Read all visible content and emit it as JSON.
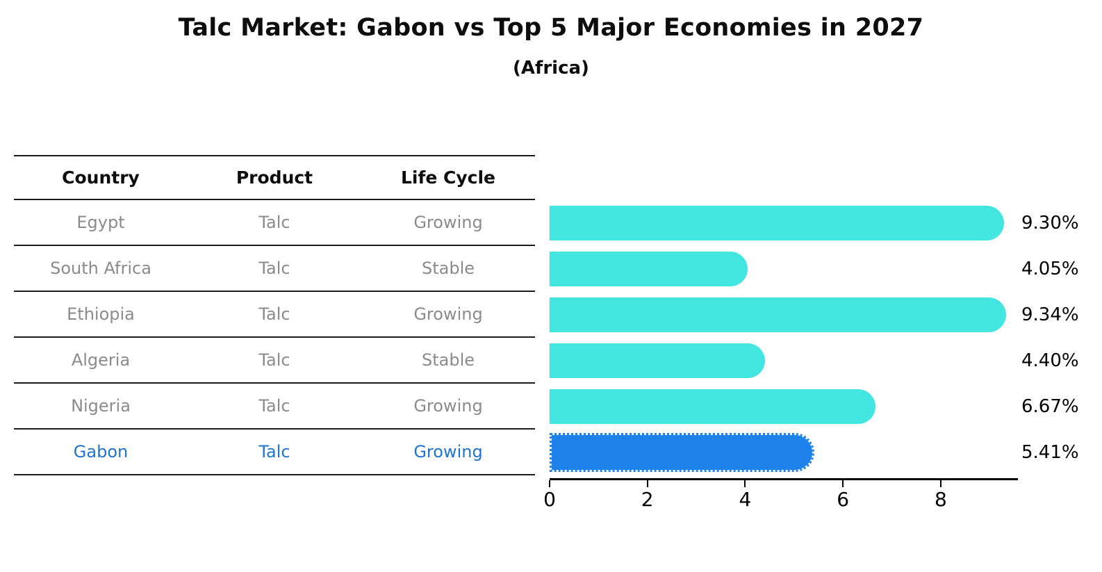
{
  "title": "Talc Market: Gabon vs Top 5 Major Economies in 2027",
  "subtitle": "(Africa)",
  "colors": {
    "bar_default": "#42e5df",
    "bar_highlight": "#1e82ec",
    "highlight_text": "#1e74d1",
    "row_text": "#8b8b8b",
    "axis": "#000000"
  },
  "table": {
    "headers": [
      "Country",
      "Product",
      "Life Cycle"
    ],
    "rows": [
      {
        "country": "Egypt",
        "product": "Talc",
        "life_cycle": "Growing",
        "highlighted": false
      },
      {
        "country": "South Africa",
        "product": "Talc",
        "life_cycle": "Stable",
        "highlighted": false
      },
      {
        "country": "Ethiopia",
        "product": "Talc",
        "life_cycle": "Growing",
        "highlighted": false
      },
      {
        "country": "Algeria",
        "product": "Talc",
        "life_cycle": "Stable",
        "highlighted": false
      },
      {
        "country": "Nigeria",
        "product": "Talc",
        "life_cycle": "Growing",
        "highlighted": false
      },
      {
        "country": "Gabon",
        "product": "Talc",
        "life_cycle": "Growing",
        "highlighted": true
      }
    ]
  },
  "chart_data": {
    "type": "bar",
    "orientation": "horizontal",
    "title": "Talc Market: Gabon vs Top 5 Major Economies in 2027",
    "subtitle": "(Africa)",
    "categories": [
      "Egypt",
      "South Africa",
      "Ethiopia",
      "Algeria",
      "Nigeria",
      "Gabon"
    ],
    "values": [
      9.3,
      4.05,
      9.34,
      4.4,
      6.67,
      5.41
    ],
    "value_labels": [
      "9.30%",
      "4.05%",
      "9.34%",
      "4.40%",
      "6.67%",
      "5.41%"
    ],
    "unit": "percent",
    "x_ticks": [
      0,
      2,
      4,
      6,
      8
    ],
    "xlim": [
      0,
      9.55
    ],
    "grid": false,
    "legend": false,
    "highlight_index": 5,
    "highlight_category": "Gabon"
  }
}
